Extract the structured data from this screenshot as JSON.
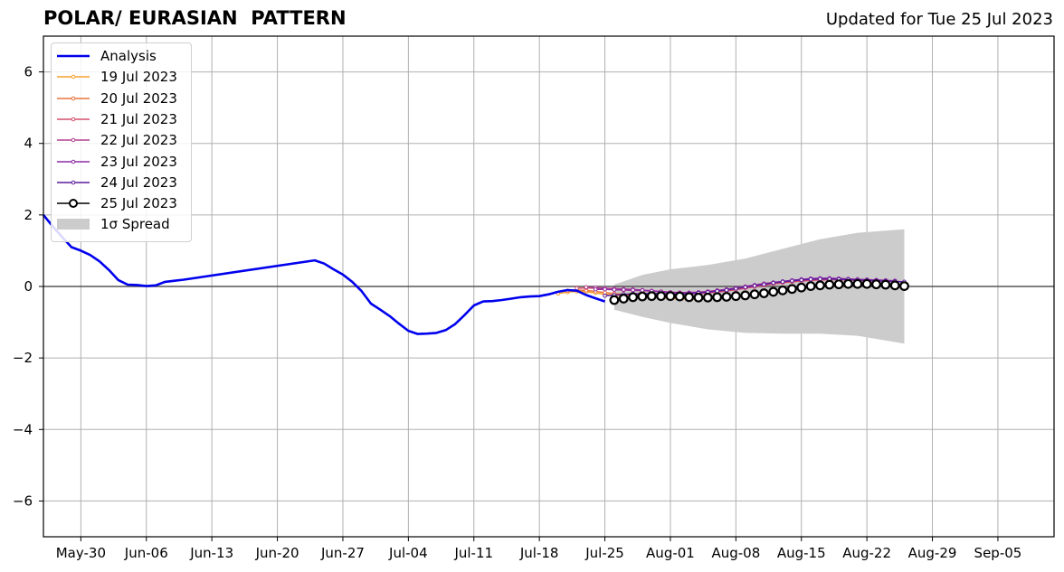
{
  "header": {
    "title": "POLAR/ EURASIAN  PATTERN",
    "updated": "Updated for Tue 25 Jul 2023"
  },
  "chart_data": {
    "type": "line",
    "title": "POLAR/ EURASIAN  PATTERN",
    "subtitle": "Updated for Tue 25 Jul 2023",
    "xlabel": "",
    "ylabel": "",
    "x_ticks": [
      "May-30",
      "Jun-06",
      "Jun-13",
      "Jun-20",
      "Jun-27",
      "Jul-04",
      "Jul-11",
      "Jul-18",
      "Jul-25",
      "Aug-01",
      "Aug-08",
      "Aug-15",
      "Aug-22",
      "Aug-29",
      "Sep-05"
    ],
    "y_ticks": [
      6,
      4,
      2,
      0,
      -2,
      -4,
      -6
    ],
    "y_tick_labels": [
      "6",
      "4",
      "2",
      "0",
      "−2",
      "−4",
      "−6"
    ],
    "ylim": [
      -7,
      7
    ],
    "xlim": [
      "2023-05-26",
      "2023-09-11"
    ],
    "grid": true,
    "zero_line": true,
    "legend_position": "top-left",
    "analysis": {
      "name": "Analysis",
      "color": "#0000ee",
      "x": [
        "2023-05-26",
        "2023-05-27",
        "2023-05-28",
        "2023-05-29",
        "2023-05-30",
        "2023-05-31",
        "2023-06-01",
        "2023-06-02",
        "2023-06-03",
        "2023-06-04",
        "2023-06-05",
        "2023-06-06",
        "2023-06-07",
        "2023-06-08",
        "2023-06-09",
        "2023-06-10",
        "2023-06-24",
        "2023-06-25",
        "2023-06-26",
        "2023-06-27",
        "2023-06-28",
        "2023-06-29",
        "2023-06-30",
        "2023-07-01",
        "2023-07-02",
        "2023-07-03",
        "2023-07-04",
        "2023-07-05",
        "2023-07-06",
        "2023-07-07",
        "2023-07-08",
        "2023-07-09",
        "2023-07-10",
        "2023-07-11",
        "2023-07-12",
        "2023-07-13",
        "2023-07-14",
        "2023-07-15",
        "2023-07-16",
        "2023-07-17",
        "2023-07-18",
        "2023-07-19",
        "2023-07-20",
        "2023-07-21",
        "2023-07-22",
        "2023-07-23",
        "2023-07-24",
        "2023-07-25"
      ],
      "values": [
        2.0,
        1.68,
        1.38,
        1.1,
        1.0,
        0.88,
        0.7,
        0.46,
        0.18,
        0.05,
        0.04,
        0.01,
        0.03,
        0.13,
        0.16,
        0.19,
        0.73,
        0.64,
        0.48,
        0.33,
        0.13,
        -0.13,
        -0.48,
        -0.65,
        -0.83,
        -1.04,
        -1.24,
        -1.33,
        -1.32,
        -1.3,
        -1.22,
        -1.05,
        -0.8,
        -0.53,
        -0.42,
        -0.41,
        -0.38,
        -0.34,
        -0.3,
        -0.28,
        -0.27,
        -0.22,
        -0.15,
        -0.1,
        -0.12,
        -0.24,
        -0.33,
        -0.42
      ]
    },
    "forecasts": [
      {
        "name": "19 Jul 2023",
        "color": "#f8a12f",
        "x": [
          "2023-07-20",
          "2023-07-21",
          "2023-07-22",
          "2023-07-23",
          "2023-07-24",
          "2023-07-25",
          "2023-07-26",
          "2023-07-27",
          "2023-07-28",
          "2023-07-29",
          "2023-07-30",
          "2023-07-31",
          "2023-08-01",
          "2023-08-02",
          "2023-08-03",
          "2023-08-04"
        ],
        "values": [
          -0.2,
          -0.16,
          -0.14,
          -0.15,
          -0.18,
          -0.22,
          -0.24,
          -0.26,
          -0.27,
          -0.28,
          -0.3,
          -0.32,
          -0.34,
          -0.35,
          -0.36,
          -0.35
        ]
      },
      {
        "name": "20 Jul 2023",
        "color": "#e8743b",
        "x": [
          "2023-07-21",
          "2023-07-22",
          "2023-07-23",
          "2023-07-24",
          "2023-07-25",
          "2023-07-26",
          "2023-07-27",
          "2023-07-28",
          "2023-07-29",
          "2023-07-30",
          "2023-07-31",
          "2023-08-01",
          "2023-08-02",
          "2023-08-03",
          "2023-08-04",
          "2023-08-05"
        ],
        "values": [
          -0.12,
          -0.1,
          -0.11,
          -0.14,
          -0.17,
          -0.2,
          -0.22,
          -0.24,
          -0.25,
          -0.26,
          -0.28,
          -0.3,
          -0.31,
          -0.31,
          -0.3,
          -0.28
        ]
      },
      {
        "name": "21 Jul 2023",
        "color": "#d64f6b",
        "x": [
          "2023-07-22",
          "2023-07-23",
          "2023-07-24",
          "2023-07-25",
          "2023-07-26",
          "2023-07-27",
          "2023-07-28",
          "2023-07-29",
          "2023-07-30",
          "2023-07-31",
          "2023-08-01",
          "2023-08-02",
          "2023-08-03",
          "2023-08-04",
          "2023-08-05",
          "2023-08-06",
          "2023-08-07",
          "2023-08-08",
          "2023-08-09",
          "2023-08-10",
          "2023-08-11",
          "2023-08-12",
          "2023-08-13",
          "2023-08-14",
          "2023-08-15",
          "2023-08-16",
          "2023-08-17",
          "2023-08-18",
          "2023-08-19",
          "2023-08-20",
          "2023-08-21",
          "2023-08-22",
          "2023-08-23"
        ],
        "values": [
          -0.05,
          -0.04,
          -0.05,
          -0.07,
          -0.09,
          -0.1,
          -0.11,
          -0.12,
          -0.13,
          -0.15,
          -0.17,
          -0.19,
          -0.2,
          -0.2,
          -0.18,
          -0.16,
          -0.13,
          -0.09,
          -0.05,
          -0.01,
          0.03,
          0.07,
          0.1,
          0.13,
          0.15,
          0.17,
          0.18,
          0.19,
          0.19,
          0.18,
          0.17,
          0.16,
          0.15
        ]
      },
      {
        "name": "22 Jul 2023",
        "color": "#b3408f",
        "x": [
          "2023-07-23",
          "2023-07-24",
          "2023-07-25",
          "2023-07-26",
          "2023-07-27",
          "2023-07-28",
          "2023-07-29",
          "2023-07-30",
          "2023-07-31",
          "2023-08-01",
          "2023-08-02",
          "2023-08-03",
          "2023-08-04",
          "2023-08-05",
          "2023-08-06",
          "2023-08-07",
          "2023-08-08",
          "2023-08-09",
          "2023-08-10",
          "2023-08-11",
          "2023-08-12",
          "2023-08-13",
          "2023-08-14",
          "2023-08-15",
          "2023-08-16",
          "2023-08-17",
          "2023-08-18",
          "2023-08-19",
          "2023-08-20",
          "2023-08-21",
          "2023-08-22",
          "2023-08-23",
          "2023-08-24"
        ],
        "values": [
          -0.02,
          -0.03,
          -0.05,
          -0.06,
          -0.07,
          -0.08,
          -0.1,
          -0.12,
          -0.14,
          -0.16,
          -0.17,
          -0.17,
          -0.16,
          -0.14,
          -0.11,
          -0.08,
          -0.04,
          0.0,
          0.04,
          0.08,
          0.11,
          0.14,
          0.17,
          0.19,
          0.21,
          0.22,
          0.22,
          0.22,
          0.21,
          0.2,
          0.19,
          0.18,
          0.17
        ]
      },
      {
        "name": "23 Jul 2023",
        "color": "#8c2ba6",
        "x": [
          "2023-07-24",
          "2023-07-25",
          "2023-07-26",
          "2023-07-27",
          "2023-07-28",
          "2023-07-29",
          "2023-07-30",
          "2023-07-31",
          "2023-08-01",
          "2023-08-02",
          "2023-08-03",
          "2023-08-04",
          "2023-08-05",
          "2023-08-06",
          "2023-08-07",
          "2023-08-08",
          "2023-08-09",
          "2023-08-10",
          "2023-08-11",
          "2023-08-12",
          "2023-08-13",
          "2023-08-14",
          "2023-08-15",
          "2023-08-16",
          "2023-08-17",
          "2023-08-18",
          "2023-08-19",
          "2023-08-20",
          "2023-08-21",
          "2023-08-22",
          "2023-08-23",
          "2023-08-24",
          "2023-08-25"
        ],
        "values": [
          -0.08,
          -0.08,
          -0.09,
          -0.09,
          -0.1,
          -0.11,
          -0.13,
          -0.15,
          -0.17,
          -0.18,
          -0.18,
          -0.17,
          -0.15,
          -0.12,
          -0.09,
          -0.05,
          -0.01,
          0.03,
          0.07,
          0.11,
          0.14,
          0.17,
          0.2,
          0.22,
          0.23,
          0.23,
          0.22,
          0.21,
          0.2,
          0.19,
          0.18,
          0.17,
          0.16
        ]
      },
      {
        "name": "24 Jul 2023",
        "color": "#5c1a9c",
        "x": [
          "2023-07-25",
          "2023-07-26",
          "2023-07-27",
          "2023-07-28",
          "2023-07-29",
          "2023-07-30",
          "2023-07-31",
          "2023-08-01",
          "2023-08-02",
          "2023-08-03",
          "2023-08-04",
          "2023-08-05",
          "2023-08-06",
          "2023-08-07",
          "2023-08-08",
          "2023-08-09",
          "2023-08-10",
          "2023-08-11",
          "2023-08-12",
          "2023-08-13",
          "2023-08-14",
          "2023-08-15",
          "2023-08-16",
          "2023-08-17",
          "2023-08-18",
          "2023-08-19",
          "2023-08-20",
          "2023-08-21",
          "2023-08-22",
          "2023-08-23",
          "2023-08-24",
          "2023-08-25",
          "2023-08-26"
        ],
        "values": [
          -0.26,
          -0.24,
          -0.22,
          -0.21,
          -0.2,
          -0.2,
          -0.2,
          -0.21,
          -0.21,
          -0.2,
          -0.18,
          -0.16,
          -0.13,
          -0.1,
          -0.06,
          -0.02,
          0.02,
          0.06,
          0.1,
          0.13,
          0.16,
          0.18,
          0.2,
          0.21,
          0.21,
          0.2,
          0.19,
          0.18,
          0.17,
          0.16,
          0.15,
          0.14,
          0.13
        ]
      },
      {
        "name": "25 Jul 2023",
        "color": "#000000",
        "x": [
          "2023-07-26",
          "2023-07-27",
          "2023-07-28",
          "2023-07-29",
          "2023-07-30",
          "2023-07-31",
          "2023-08-01",
          "2023-08-02",
          "2023-08-03",
          "2023-08-04",
          "2023-08-05",
          "2023-08-06",
          "2023-08-07",
          "2023-08-08",
          "2023-08-09",
          "2023-08-10",
          "2023-08-11",
          "2023-08-12",
          "2023-08-13",
          "2023-08-14",
          "2023-08-15",
          "2023-08-16",
          "2023-08-17",
          "2023-08-18",
          "2023-08-19",
          "2023-08-20",
          "2023-08-21",
          "2023-08-22",
          "2023-08-23",
          "2023-08-24",
          "2023-08-25",
          "2023-08-26"
        ],
        "values": [
          -0.38,
          -0.34,
          -0.3,
          -0.28,
          -0.27,
          -0.27,
          -0.27,
          -0.28,
          -0.3,
          -0.31,
          -0.31,
          -0.3,
          -0.29,
          -0.27,
          -0.25,
          -0.22,
          -0.19,
          -0.15,
          -0.11,
          -0.07,
          -0.03,
          0.01,
          0.03,
          0.05,
          0.06,
          0.07,
          0.07,
          0.07,
          0.06,
          0.05,
          0.03,
          0.01
        ]
      }
    ],
    "spread": {
      "name": "1σ Spread",
      "color": "#cccccc",
      "x": [
        "2023-07-26",
        "2023-07-29",
        "2023-08-01",
        "2023-08-05",
        "2023-08-09",
        "2023-08-13",
        "2023-08-17",
        "2023-08-21",
        "2023-08-26"
      ],
      "upper": [
        0.05,
        0.32,
        0.48,
        0.6,
        0.78,
        1.05,
        1.32,
        1.5,
        1.6
      ],
      "lower": [
        -0.65,
        -0.85,
        -1.02,
        -1.2,
        -1.3,
        -1.32,
        -1.32,
        -1.38,
        -1.6
      ]
    }
  }
}
